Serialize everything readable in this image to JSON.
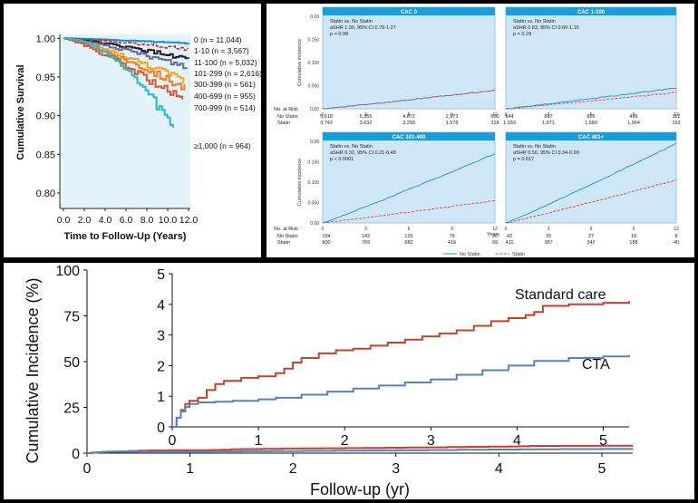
{
  "chart_data": [
    {
      "id": "survival",
      "type": "line",
      "title": "",
      "xlabel": "Time to Follow-Up (Years)",
      "ylabel": "Cumulative Survival",
      "xlim": [
        0,
        12
      ],
      "ylim": [
        0.78,
        1.005
      ],
      "x_ticks": [
        "0.0",
        "2.0",
        "4.0",
        "6.0",
        "8.0",
        "10.0",
        "12.0"
      ],
      "y_ticks": [
        "1.00",
        "0.95",
        "0.90",
        "0.85",
        "0.80"
      ],
      "series": [
        {
          "name": "0 (n = 11,044)",
          "color": "#1b8fcf",
          "end_x": 12,
          "end_y": 0.993
        },
        {
          "name": "1-10 (n = 3,567)",
          "color": "#c9302c",
          "end_x": 11.9,
          "end_y": 0.986
        },
        {
          "name": "11-100 (n = 5,032)",
          "color": "#222222",
          "end_x": 12,
          "end_y": 0.973
        },
        {
          "name": "101-299 (n = 2,616)",
          "color": "#6b6b9a",
          "end_x": 11.8,
          "end_y": 0.963
        },
        {
          "name": "300-399 (n = 561)",
          "color": "#f5a623",
          "end_x": 11.5,
          "end_y": 0.945
        },
        {
          "name": "400-699 (n = 955)",
          "color": "#f27f22",
          "end_x": 11.6,
          "end_y": 0.935
        },
        {
          "name": "700-999 (n = 514)",
          "color": "#e0532b",
          "end_x": 11.4,
          "end_y": 0.918
        },
        {
          "name": "≥1,000 (n = 964)",
          "color": "#2cb5c4",
          "end_x": 10.5,
          "end_y": 0.885
        }
      ]
    },
    {
      "id": "cac-subgroups",
      "type": "line",
      "ylabel": "Cumulative incidence",
      "xlabel": "Years",
      "ylim": [
        0,
        0.2
      ],
      "y_ticks": [
        "0.20",
        "0.150",
        "0.100",
        "0.050",
        "0.00"
      ],
      "x_ticks": [
        "0",
        "3",
        "6",
        "9",
        "12"
      ],
      "legend": [
        "No Statin",
        "Statin"
      ],
      "at_risk_label": "No. at Risk",
      "panels": [
        {
          "title": "CAC 0",
          "stat1": "Statin vs. No Statin",
          "stat2": "aSHR 1.00, 95% CI 0.79-1.27",
          "stat3": "p = 0.99",
          "no_statin_end": 0.04,
          "statin_end": 0.04,
          "risk_no_statin": [
            "5,618",
            "5,355",
            "4,872",
            "2,973",
            "600"
          ],
          "risk_statin": [
            "3,742",
            "3,632",
            "3,258",
            "1,978",
            "318"
          ]
        },
        {
          "title": "CAC 1-100",
          "stat1": "Statin vs. No Statin",
          "stat2": "aSHR 0.83, 95% CI 0.60-1.16",
          "stat3": "p = 0.29",
          "no_statin_end": 0.045,
          "statin_end": 0.035,
          "risk_no_statin": [
            "944",
            "897",
            "805",
            "499",
            "112"
          ],
          "risk_statin": [
            "1,933",
            "1,871",
            "1,689",
            "1,004",
            "163"
          ]
        },
        {
          "title": "CAC 101-400",
          "stat1": "Statin vs. No Statin",
          "stat2": "aSHR 0.32, 95% CI 0.21-0.48",
          "stat3": "p < 0.0001",
          "no_statin_end": 0.17,
          "statin_end": 0.055,
          "risk_no_statin": [
            "154",
            "142",
            "126",
            "79",
            "20"
          ],
          "risk_statin": [
            "800",
            "769",
            "682",
            "416",
            "69"
          ]
        },
        {
          "title": "CAC 401+",
          "stat1": "Statin vs. No Statin",
          "stat2": "aSHR 0.56, 95% CI 0.34-0.90",
          "stat3": "p = 0.017",
          "no_statin_end": 0.195,
          "statin_end": 0.105,
          "risk_no_statin": [
            "42",
            "33",
            "27",
            "18",
            "8"
          ],
          "risk_statin": [
            "411",
            "387",
            "347",
            "188",
            "40"
          ]
        }
      ]
    },
    {
      "id": "cumulative-incidence",
      "type": "line",
      "xlabel": "Follow-up (yr)",
      "ylabel": "Cumulative Incidence (%)",
      "xlim": [
        0,
        5.3
      ],
      "ylim": [
        0,
        100
      ],
      "x_ticks": [
        "0",
        "1",
        "2",
        "3",
        "4",
        "5"
      ],
      "y_ticks": [
        "0",
        "25",
        "50",
        "75",
        "100"
      ],
      "inset": {
        "xlim": [
          0,
          5.3
        ],
        "ylim": [
          0,
          5
        ],
        "x_ticks": [
          "0",
          "1",
          "2",
          "3",
          "4",
          "5"
        ],
        "y_ticks": [
          "0",
          "1",
          "2",
          "3",
          "4",
          "5"
        ]
      },
      "series": [
        {
          "name": "Standard care",
          "color": "#c4412b",
          "x": [
            0,
            0.05,
            0.1,
            0.15,
            0.2,
            0.3,
            0.4,
            0.5,
            0.6,
            0.8,
            1.0,
            1.2,
            1.3,
            1.4,
            1.5,
            1.7,
            1.9,
            2.1,
            2.3,
            2.5,
            2.7,
            2.9,
            3.1,
            3.3,
            3.5,
            3.7,
            3.9,
            4.1,
            4.2,
            4.3,
            4.6,
            4.8,
            5.0,
            5.3
          ],
          "y": [
            0,
            0.3,
            0.55,
            0.75,
            0.85,
            0.95,
            1.2,
            1.4,
            1.5,
            1.6,
            1.65,
            1.75,
            1.9,
            2.1,
            2.25,
            2.4,
            2.5,
            2.55,
            2.65,
            2.75,
            2.85,
            2.95,
            3.05,
            3.15,
            3.3,
            3.45,
            3.55,
            3.65,
            3.75,
            3.95,
            4.0,
            4.0,
            4.05,
            4.1
          ]
        },
        {
          "name": "CTA",
          "color": "#5a80c2",
          "x": [
            0,
            0.05,
            0.1,
            0.15,
            0.2,
            0.3,
            0.5,
            0.7,
            1.0,
            1.2,
            1.5,
            1.8,
            2.1,
            2.4,
            2.7,
            3.0,
            3.3,
            3.6,
            3.9,
            4.2,
            4.6,
            5.0,
            5.3
          ],
          "y": [
            0,
            0.3,
            0.5,
            0.65,
            0.75,
            0.8,
            0.82,
            0.85,
            0.9,
            0.95,
            1.05,
            1.15,
            1.25,
            1.35,
            1.45,
            1.55,
            1.7,
            1.85,
            2.0,
            2.15,
            2.25,
            2.3,
            2.35
          ]
        }
      ]
    }
  ]
}
